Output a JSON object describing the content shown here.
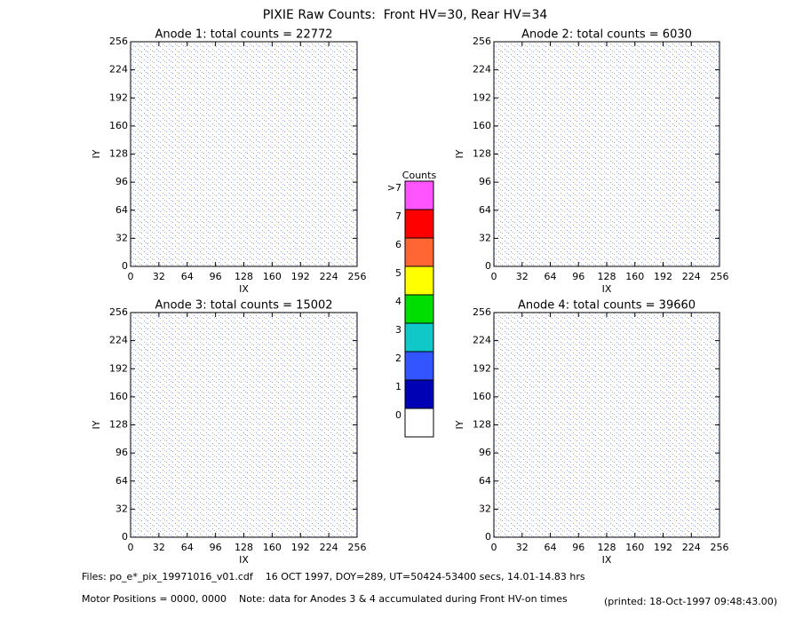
{
  "title": "PIXIE Raw Counts:  Front HV=30, Rear HV=34",
  "chart_data": [
    {
      "type": "image",
      "title": "Anode 1: total counts = 22772",
      "xlabel": "IX",
      "ylabel": "IY",
      "xlim": [
        0,
        256
      ],
      "ylim": [
        0,
        256
      ],
      "xticks": [
        0,
        32,
        64,
        96,
        128,
        160,
        192,
        224,
        256
      ],
      "yticks": [
        0,
        32,
        64,
        96,
        128,
        160,
        192,
        224,
        256
      ]
    },
    {
      "type": "image",
      "title": "Anode 2: total counts = 6030",
      "xlabel": "IX",
      "ylabel": "IY",
      "xlim": [
        0,
        256
      ],
      "ylim": [
        0,
        256
      ],
      "xticks": [
        0,
        32,
        64,
        96,
        128,
        160,
        192,
        224,
        256
      ],
      "yticks": [
        0,
        32,
        64,
        96,
        128,
        160,
        192,
        224,
        256
      ]
    },
    {
      "type": "image",
      "title": "Anode 3: total counts = 15002",
      "xlabel": "IX",
      "ylabel": "IY",
      "xlim": [
        0,
        256
      ],
      "ylim": [
        0,
        256
      ],
      "xticks": [
        0,
        32,
        64,
        96,
        128,
        160,
        192,
        224,
        256
      ],
      "yticks": [
        0,
        32,
        64,
        96,
        128,
        160,
        192,
        224,
        256
      ]
    },
    {
      "type": "image",
      "title": "Anode 4: total counts = 39660",
      "xlabel": "IX",
      "ylabel": "IY",
      "xlim": [
        0,
        256
      ],
      "ylim": [
        0,
        256
      ],
      "xticks": [
        0,
        32,
        64,
        96,
        128,
        160,
        192,
        224,
        256
      ],
      "yticks": [
        0,
        32,
        64,
        96,
        128,
        160,
        192,
        224,
        256
      ]
    }
  ],
  "colorbar": {
    "title": "Counts",
    "labels": [
      "0",
      "1",
      "2",
      "3",
      "4",
      "5",
      "6",
      "7",
      ">7"
    ],
    "colors": [
      "#ffffff",
      "#0000b4",
      "#3355ff",
      "#11c8c8",
      "#00dd00",
      "#ffff00",
      "#ff6633",
      "#ff0000",
      "#ff55ff"
    ]
  },
  "footer": {
    "files": "Files: po_e*_pix_19971016_v01.cdf    16 OCT 1997, DOY=289, UT=50424-53400 secs, 14.01-14.83 hrs",
    "motor": "Motor Positions = 0000, 0000    Note: data for Anodes 3 & 4 accumulated during Front HV-on times",
    "printed": "(printed: 18-Oct-1997 09:48:43.00)"
  }
}
